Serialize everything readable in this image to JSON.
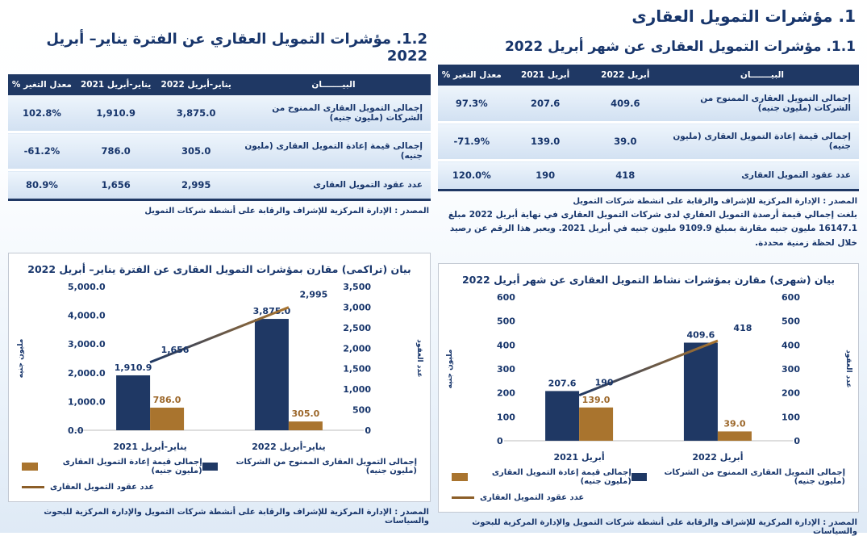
{
  "page": {
    "main_title": "1. مؤشرات التمويل العقارى"
  },
  "colors": {
    "navy": "#1f3864",
    "brown": "#a9742e",
    "header_bg": "#1f3864",
    "row_bg": "#d9e6f4",
    "text": "#17356b"
  },
  "section_monthly": {
    "title": "1.1. مؤشرات التمويل العقارى عن شهر أبريل 2022",
    "table": {
      "headers": [
        "البيـــــــان",
        "أبريل 2022",
        "أبريل 2021",
        "معدل التغير %"
      ],
      "rows": [
        {
          "label": "إجمالى التمويل العقارى الممنوح من الشركات (مليون جنيه)",
          "v_2022": "409.6",
          "v_2021": "207.6",
          "change": "97.3%"
        },
        {
          "label": "إجمالى قيمة إعادة التمويل العقارى (مليون جنيه)",
          "v_2022": "39.0",
          "v_2021": "139.0",
          "change": "-71.9%"
        },
        {
          "label": "عدد عقود التمويل العقارى",
          "v_2022": "418",
          "v_2021": "190",
          "change": "120.0%"
        }
      ]
    },
    "source": "المصدر : الإدارة المركزية للإشراف والرقابة على انشطة شركات التمويل",
    "note": "بلغت إجمالي قيمة أرصدة التمويل العقاري لدى شركات التمويل العقارى في نهاية أبريل 2022 مبلغ 16147.1 مليون جنيه مقارنة بمبلغ 9109.9 مليون جنيه في أبريل 2021. ويعبر هذا الرقم عن رصيد خلال لحظة زمنية محددة."
  },
  "section_cumulative": {
    "title": "1.2. مؤشرات التمويل العقاري عن الفترة يناير– أبريل 2022",
    "table": {
      "headers": [
        "البيـــــــان",
        "يناير-أبريل 2022",
        "يناير-أبريل 2021",
        "معدل التغير %"
      ],
      "rows": [
        {
          "label": "إجمالى التمويل العقارى الممنوح من الشركات (مليون جنيه)",
          "v_2022": "3,875.0",
          "v_2021": "1,910.9",
          "change": "102.8%"
        },
        {
          "label": "إجمالى قيمة إعادة التمويل العقارى (مليون جنيه)",
          "v_2022": "305.0",
          "v_2021": "786.0",
          "change": "-61.2%"
        },
        {
          "label": "عدد عقود التمويل العقارى",
          "v_2022": "2,995",
          "v_2021": "1,656",
          "change": "80.9%"
        }
      ]
    },
    "source": "المصدر : الإدارة المركزية للإشراف والرقابة على أنشطة شركات التمويل"
  },
  "chart_data": [
    {
      "id": "monthly",
      "type": "bar",
      "subtype": "grouped-bars-with-line-dual-axis",
      "title": "بيان (شهرى) مقارن بمؤشرات نشاط التمويل العقارى عن شهر أبريل 2022",
      "categories": [
        "أبريل 2021",
        "أبريل 2022"
      ],
      "series": [
        {
          "name": "إجمالى التمويل العقارى الممنوح من الشركات (مليون جنيه)",
          "type": "bar",
          "axis": "left",
          "color": "#1f3864",
          "values": [
            207.6,
            409.6
          ],
          "labels": [
            "207.6",
            "409.6"
          ]
        },
        {
          "name": "إجمالى قيمة إعادة التمويل العقارى (مليون جنيه)",
          "type": "bar",
          "axis": "left",
          "color": "#a9742e",
          "values": [
            139.0,
            39.0
          ],
          "labels": [
            "139.0",
            "39.0"
          ]
        },
        {
          "name": "عدد عقود التمويل العقارى",
          "type": "line",
          "axis": "right",
          "color_start": "#1f3864",
          "color_end": "#a9742e",
          "values": [
            190,
            418
          ],
          "labels": [
            "190",
            "418"
          ]
        }
      ],
      "left_axis": {
        "title": "مليون جنيه",
        "min": 0,
        "max": 600,
        "step": 100,
        "labels": [
          "0",
          "100",
          "200",
          "300",
          "400",
          "500",
          "600"
        ]
      },
      "right_axis": {
        "title": "عدد العقود",
        "min": 0,
        "max": 600,
        "step": 100,
        "labels": [
          "0",
          "100",
          "200",
          "300",
          "400",
          "500",
          "600"
        ]
      },
      "grid": false,
      "legend_position": "bottom",
      "source": "المصدر : الإدارة المركزية للإشراف والرقابة على أنشطة شركات التمويل والإدارة المركزية للبحوث والسياسات"
    },
    {
      "id": "cumulative",
      "type": "bar",
      "subtype": "grouped-bars-with-line-dual-axis",
      "title": "بيان (تراكمى) مقارن بمؤشرات التمويل العقارى عن الفترة يناير– أبريل 2022",
      "categories": [
        "يناير-أبريل 2021",
        "يناير-أبريل 2022"
      ],
      "series": [
        {
          "name": "إجمالى التمويل العقارى الممنوح من الشركات (مليون جنيه)",
          "type": "bar",
          "axis": "left",
          "color": "#1f3864",
          "values": [
            1910.9,
            3875.0
          ],
          "labels": [
            "1,910.9",
            "3,875.0"
          ]
        },
        {
          "name": "إجمالى قيمة إعادة التمويل العقارى (مليون جنيه)",
          "type": "bar",
          "axis": "left",
          "color": "#a9742e",
          "values": [
            786.0,
            305.0
          ],
          "labels": [
            "786.0",
            "305.0"
          ]
        },
        {
          "name": "عدد عقود التمويل العقارى",
          "type": "line",
          "axis": "right",
          "color_start": "#1f3864",
          "color_end": "#a9742e",
          "values": [
            1656,
            2995
          ],
          "labels": [
            "1,656",
            "2,995"
          ]
        }
      ],
      "left_axis": {
        "title": "مليون جنيه",
        "min": 0,
        "max": 5000,
        "step": 1000,
        "labels": [
          "0.0",
          "1,000.0",
          "2,000.0",
          "3,000.0",
          "4,000.0",
          "5,000.0"
        ]
      },
      "right_axis": {
        "title": "عدد العقود",
        "min": 0,
        "max": 3500,
        "step": 500,
        "labels": [
          "0",
          "500",
          "1,000",
          "1,500",
          "2,000",
          "2,500",
          "3,000",
          "3,500"
        ]
      },
      "grid": false,
      "legend_position": "bottom",
      "source": "المصدر : الإدارة المركزية للإشراف والرقابة على أنشطة شركات التمويل والإدارة المركزية للبحوث والسياسات"
    }
  ]
}
